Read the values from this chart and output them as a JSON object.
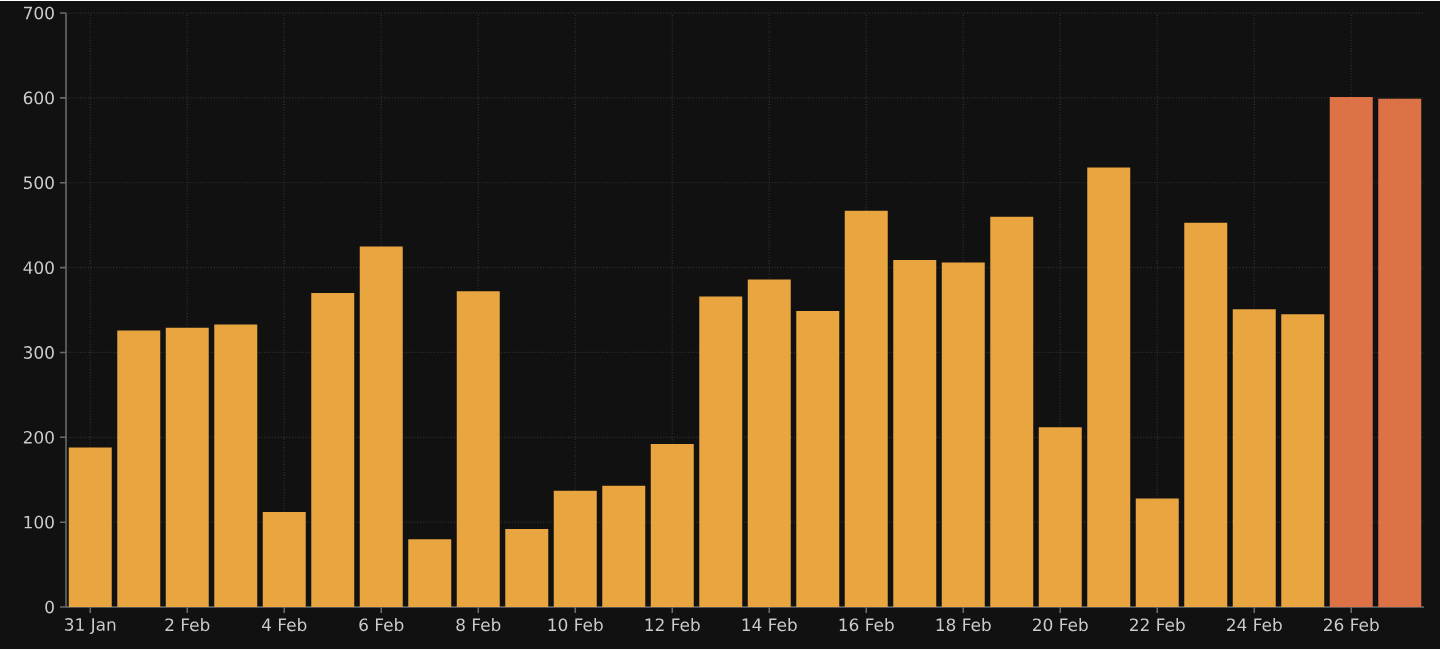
{
  "chart_data": {
    "type": "bar",
    "categories": [
      "31 Jan",
      null,
      "2 Feb",
      null,
      "4 Feb",
      null,
      "6 Feb",
      null,
      "8 Feb",
      null,
      "10 Feb",
      null,
      "12 Feb",
      null,
      "14 Feb",
      null,
      "16 Feb",
      null,
      "18 Feb",
      null,
      "20 Feb",
      null,
      "22 Feb",
      null,
      "24 Feb",
      null,
      "26 Feb",
      null
    ],
    "values": [
      188,
      326,
      329,
      333,
      112,
      370,
      425,
      80,
      372,
      92,
      137,
      143,
      192,
      366,
      386,
      349,
      467,
      409,
      406,
      460,
      212,
      518,
      128,
      453,
      351,
      345,
      601,
      599
    ],
    "colors": [
      "#e8a540",
      "#e8a540",
      "#e8a540",
      "#e8a540",
      "#e8a540",
      "#e8a540",
      "#e8a540",
      "#e8a540",
      "#e8a540",
      "#e8a540",
      "#e8a540",
      "#e8a540",
      "#e8a540",
      "#e8a540",
      "#e8a540",
      "#e8a540",
      "#e8a540",
      "#e8a540",
      "#e8a540",
      "#e8a540",
      "#e8a540",
      "#e8a540",
      "#e8a540",
      "#e8a540",
      "#e8a540",
      "#e8a540",
      "#dc7245",
      "#dc7245"
    ],
    "ylim": [
      0,
      700
    ],
    "yticks": [
      0,
      100,
      200,
      300,
      400,
      500,
      600,
      700
    ],
    "grid": true
  }
}
